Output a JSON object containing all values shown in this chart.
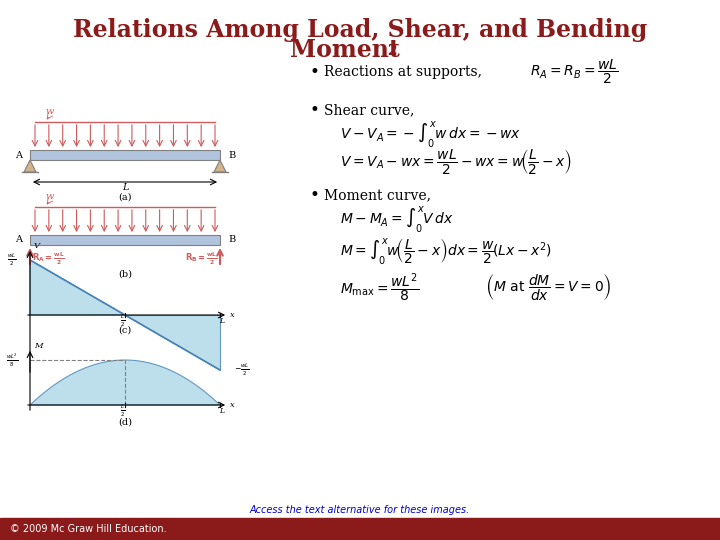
{
  "title_line1": "Relations Among Load, Shear, and Bending",
  "title_line2": "Moment",
  "title_subscript": " 2",
  "title_color": "#8B1A1A",
  "bg_color": "#FFFFFF",
  "footer_text": "© 2009 Mc Graw Hill Education.",
  "footer_color": "#FFFFFF",
  "footer_bg": "#8B1A1A",
  "link_text": "Access the text alternative for these images.",
  "link_color": "#0000CD",
  "bullet1": "Reactions at supports,",
  "bullet2": "Shear curve,",
  "bullet3": "Moment curve,",
  "eq_color": "#000000",
  "diagram_color_light": "#ADD8E6",
  "diagram_color_beam": "#B0C4DE",
  "diagram_color_red": "#CD5C5C",
  "shear_fill": "#ADD8E6",
  "moment_fill": "#ADD8E6"
}
